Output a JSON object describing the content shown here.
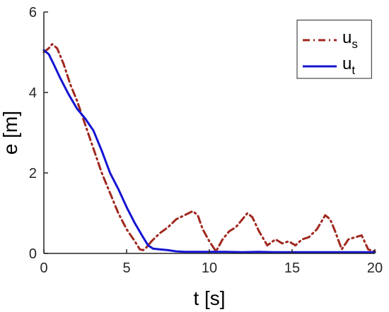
{
  "chart_data": {
    "type": "line",
    "xlabel": "t [s]",
    "ylabel": "e [m]",
    "xlim": [
      0,
      20
    ],
    "ylim": [
      0,
      6
    ],
    "xticks": [
      0,
      5,
      10,
      15,
      20
    ],
    "yticks": [
      0,
      2,
      4,
      6
    ],
    "grid": false,
    "legend_position": "top-right",
    "series": [
      {
        "name": "u_s",
        "legend_main": "u",
        "legend_sub": "s",
        "color": "#A0281E",
        "style": "dash-dot",
        "x": [
          0,
          0.3,
          0.5,
          0.8,
          1.2,
          1.6,
          2.0,
          2.5,
          3.0,
          3.5,
          4.0,
          4.5,
          5.0,
          5.5,
          5.8,
          6.0,
          6.2,
          6.5,
          7.0,
          7.5,
          8.0,
          8.5,
          9.0,
          9.3,
          9.6,
          10.0,
          10.4,
          10.8,
          11.2,
          11.6,
          12.0,
          12.3,
          12.6,
          13.0,
          13.5,
          14.0,
          14.4,
          14.8,
          15.2,
          15.6,
          16.0,
          16.5,
          17.0,
          17.3,
          17.6,
          18.0,
          18.4,
          18.8,
          19.2,
          19.6,
          20.0
        ],
        "y": [
          5.0,
          5.1,
          5.2,
          5.1,
          4.7,
          4.2,
          3.8,
          3.2,
          2.6,
          2.0,
          1.5,
          1.0,
          0.6,
          0.3,
          0.1,
          0.08,
          0.15,
          0.3,
          0.5,
          0.65,
          0.85,
          0.95,
          1.05,
          0.95,
          0.6,
          0.3,
          0.05,
          0.35,
          0.55,
          0.65,
          0.85,
          1.0,
          0.9,
          0.55,
          0.2,
          0.35,
          0.25,
          0.3,
          0.2,
          0.35,
          0.4,
          0.6,
          0.95,
          0.85,
          0.55,
          0.1,
          0.35,
          0.4,
          0.45,
          0.1,
          0.05
        ],
        "legend_y": 5.3
      },
      {
        "name": "u_t",
        "legend_main": "u",
        "legend_sub": "t",
        "color": "#1414D2",
        "style": "solid",
        "x": [
          0,
          0.3,
          0.6,
          1.0,
          1.5,
          2.0,
          2.5,
          3.0,
          3.5,
          4.0,
          4.5,
          5.0,
          5.5,
          6.0,
          6.3,
          6.6,
          7.0,
          7.5,
          8.0,
          8.5,
          9.0,
          10.0,
          11.0,
          12.0,
          13.0,
          14.0,
          15.0,
          16.0,
          17.0,
          18.0,
          19.0,
          20.0
        ],
        "y": [
          5.05,
          4.95,
          4.7,
          4.35,
          3.95,
          3.6,
          3.35,
          3.05,
          2.55,
          2.0,
          1.6,
          1.15,
          0.75,
          0.4,
          0.2,
          0.12,
          0.1,
          0.08,
          0.05,
          0.04,
          0.04,
          0.04,
          0.04,
          0.03,
          0.04,
          0.03,
          0.03,
          0.03,
          0.03,
          0.03,
          0.03,
          0.03
        ],
        "legend_y": 4.65
      }
    ]
  }
}
